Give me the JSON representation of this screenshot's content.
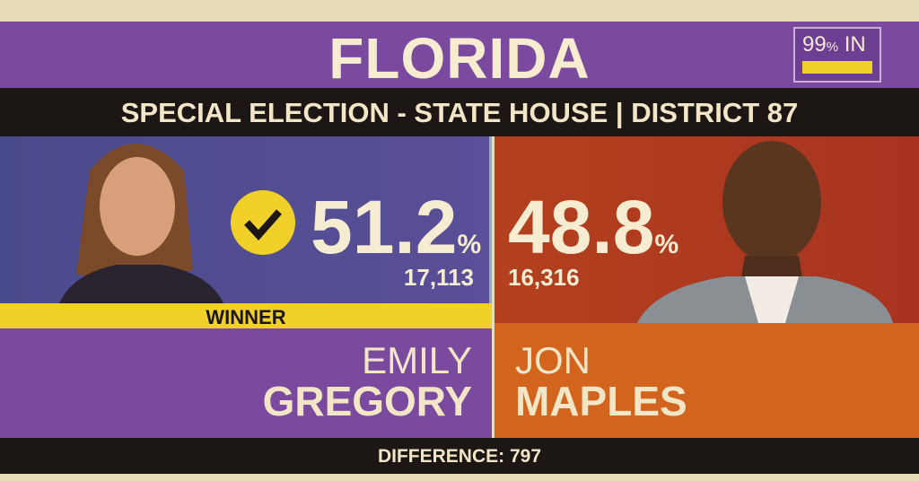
{
  "header": {
    "title": "FLORIDA",
    "subtitle": "SPECIAL ELECTION - STATE HOUSE | DISTRICT 87",
    "reporting": {
      "value": "99",
      "unit": "%",
      "label": "IN"
    }
  },
  "candidates": [
    {
      "first_name": "EMILY",
      "last_name": "GREGORY",
      "percent": "51.2",
      "percent_unit": "%",
      "votes": "17,113",
      "status": "WINNER"
    },
    {
      "first_name": "JON",
      "last_name": "MAPLES",
      "percent": "48.8",
      "percent_unit": "%",
      "votes": "16,316"
    }
  ],
  "footer": {
    "difference": "DIFFERENCE: 797"
  }
}
